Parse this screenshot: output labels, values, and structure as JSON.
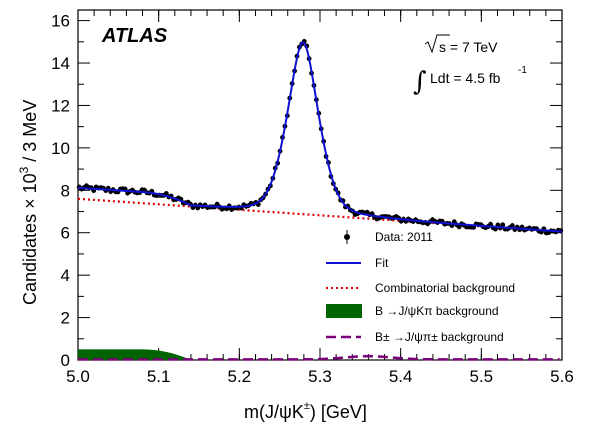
{
  "chart_data": {
    "type": "scatter",
    "atlas_label": "ATLAS",
    "energy_label": "s = 7 TeV",
    "lumi_label": "Ldt = 4.5 fb",
    "lumi_exponent": "-1",
    "xlabel": "m(J/ψK±) [GeV]",
    "xlabel_main": "m(J/ψK",
    "xlabel_sup": "±",
    "xlabel_tail": ") [GeV]",
    "ylabel": "Candidates × 10³ / 3 MeV",
    "ylabel_main": "Candidates × 10",
    "ylabel_sup": "3",
    "ylabel_tail": " / 3 MeV",
    "xlim": [
      5.0,
      5.6
    ],
    "ylim": [
      0,
      16.5
    ],
    "x_ticks": [
      "5.0",
      "5.1",
      "5.2",
      "5.3",
      "5.4",
      "5.5",
      "5.6"
    ],
    "y_ticks": [
      "0",
      "2",
      "4",
      "6",
      "8",
      "10",
      "12",
      "14",
      "16"
    ],
    "legend": [
      {
        "label": "Data: 2011",
        "marker": "point",
        "color": "#000000"
      },
      {
        "label": "Fit",
        "marker": "line",
        "color": "#1010d0"
      },
      {
        "label": "Combinatorial background",
        "marker": "dotted",
        "color": "#e00000"
      },
      {
        "label": "B →J/ψKπ background",
        "marker": "fill",
        "color": "#006400"
      },
      {
        "label": "B± →J/ψπ± background",
        "marker": "dashed",
        "color": "#7a007a"
      }
    ],
    "fit_model": {
      "signal_peak": 5.279,
      "signal_amplitude": 8.1,
      "signal_width": 0.021,
      "combinatorial_intercept": 7.6,
      "combinatorial_slope": -2.6,
      "kpi_height": 0.5,
      "kpi_edge": 5.13,
      "pipi_peak": 5.36,
      "pipi_height": 0.15
    },
    "data_points": {
      "x_start": 5.0,
      "x_end": 5.6,
      "bin": 0.003
    },
    "colors": {
      "data": "#000000",
      "fit": "#1010d0",
      "combinatorial": "#e00000",
      "kpi": "#006400",
      "pipi": "#7a007a"
    }
  }
}
